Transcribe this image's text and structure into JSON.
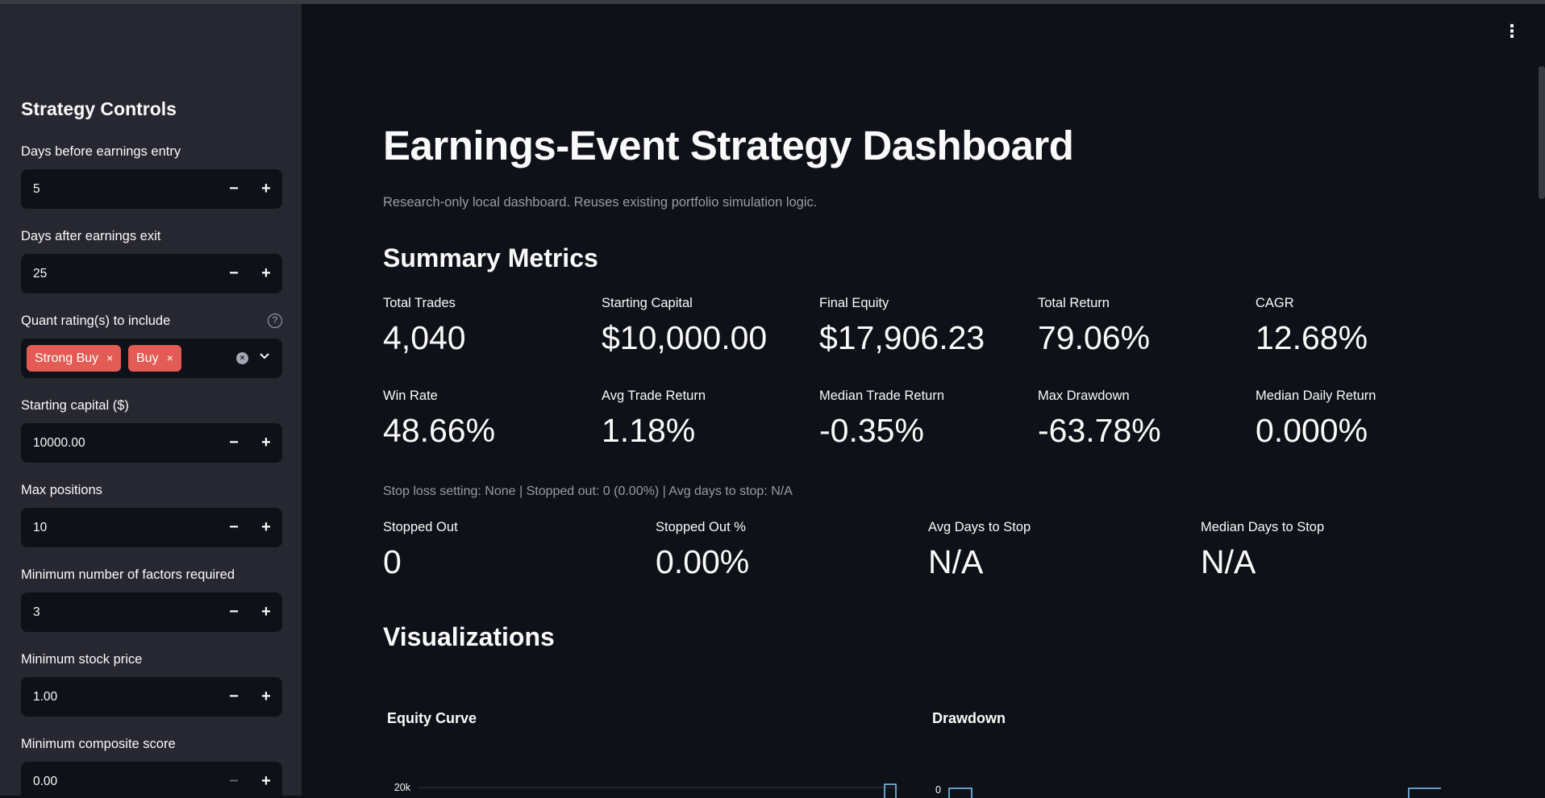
{
  "sidebar": {
    "title": "Strategy Controls",
    "controls": [
      {
        "label": "Days before earnings entry",
        "value": "5"
      },
      {
        "label": "Days after earnings exit",
        "value": "25"
      },
      {
        "label": "Starting capital ($)",
        "value": "10000.00"
      },
      {
        "label": "Max positions",
        "value": "10"
      },
      {
        "label": "Minimum number of factors required",
        "value": "3"
      },
      {
        "label": "Minimum stock price",
        "value": "1.00"
      },
      {
        "label": "Minimum composite score",
        "value": "0.00"
      }
    ],
    "ratings": {
      "label": "Quant rating(s) to include",
      "chips": [
        "Strong Buy",
        "Buy"
      ]
    },
    "icons": {
      "minus": "−",
      "plus": "+",
      "remove": "×",
      "help": "?",
      "clear": "×",
      "chevron": "⌄"
    }
  },
  "main": {
    "menu_icon": "⋮",
    "title": "Earnings-Event Strategy Dashboard",
    "caption": "Research-only local dashboard. Reuses existing portfolio simulation logic.",
    "summary_heading": "Summary Metrics",
    "metrics_row1": [
      {
        "label": "Total Trades",
        "value": "4,040"
      },
      {
        "label": "Starting Capital",
        "value": "$10,000.00"
      },
      {
        "label": "Final Equity",
        "value": "$17,906.23"
      },
      {
        "label": "Total Return",
        "value": "79.06%"
      },
      {
        "label": "CAGR",
        "value": "12.68%"
      }
    ],
    "metrics_row2": [
      {
        "label": "Win Rate",
        "value": "48.66%"
      },
      {
        "label": "Avg Trade Return",
        "value": "1.18%"
      },
      {
        "label": "Median Trade Return",
        "value": "-0.35%"
      },
      {
        "label": "Max Drawdown",
        "value": "-63.78%"
      },
      {
        "label": "Median Daily Return",
        "value": "0.000%"
      }
    ],
    "stop_caption": "Stop loss setting: None | Stopped out: 0 (0.00%) | Avg days to stop: N/A",
    "metrics_row3": [
      {
        "label": "Stopped Out",
        "value": "0"
      },
      {
        "label": "Stopped Out %",
        "value": "0.00%"
      },
      {
        "label": "Avg Days to Stop",
        "value": "N/A"
      },
      {
        "label": "Median Days to Stop",
        "value": "N/A"
      }
    ],
    "viz_heading": "Visualizations",
    "charts": {
      "equity": {
        "title": "Equity Curve",
        "tick": "20k"
      },
      "drawdown": {
        "title": "Drawdown",
        "tick": "0"
      }
    }
  },
  "colors": {
    "accent": "#e25c55",
    "background": "#0e1117",
    "sidebar": "#262730",
    "line": "#83c9ff"
  }
}
